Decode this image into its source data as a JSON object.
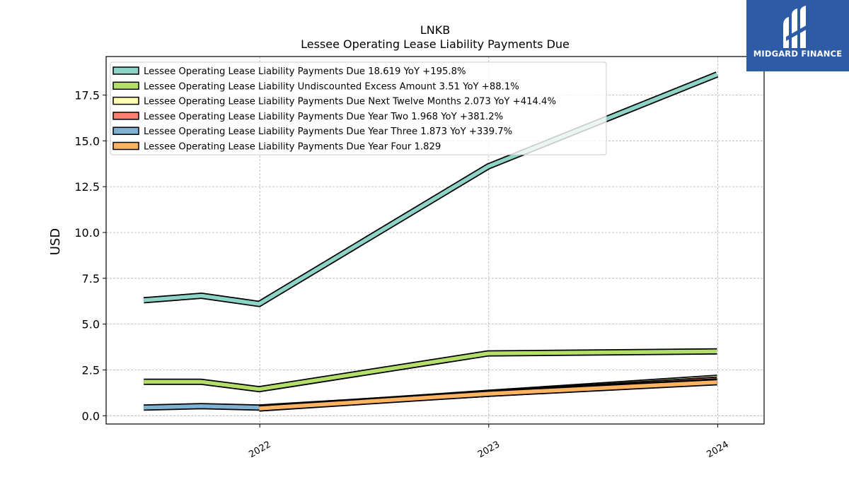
{
  "chart_data": {
    "type": "line",
    "title": "LNKB",
    "subtitle": "Lessee Operating Lease Liability Payments Due",
    "ylabel": "USD",
    "xlabel": "",
    "ylim": [
      -0.45,
      19.6
    ],
    "yticks": [
      0.0,
      2.5,
      5.0,
      7.5,
      10.0,
      12.5,
      15.0,
      17.5
    ],
    "xlim": [
      "2021-05-01",
      "2024-03-15"
    ],
    "xticks": [
      {
        "date": "2022-01-01",
        "label": "2022"
      },
      {
        "date": "2023-01-01",
        "label": "2023"
      },
      {
        "date": "2024-01-01",
        "label": "2024"
      }
    ],
    "grid": true,
    "legend_position": "upper-left",
    "series": [
      {
        "name": "Lessee Operating Lease Liability Payments Due",
        "legend": "Lessee Operating Lease Liability Payments Due  18.619 YoY +195.8%",
        "color": "#8dd3c7",
        "x": [
          "2021-06-30",
          "2021-09-30",
          "2021-12-31",
          "2022-12-31",
          "2023-12-31"
        ],
        "y": [
          6.3,
          6.55,
          6.1,
          13.6,
          18.619
        ]
      },
      {
        "name": "Lessee Operating Lease Liability Undiscounted Excess Amount",
        "legend": "Lessee Operating Lease Liability Undiscounted Excess Amount  3.51 YoY +88.1%",
        "color": "#b3de69",
        "x": [
          "2021-06-30",
          "2021-09-30",
          "2021-12-31",
          "2022-12-31",
          "2023-12-31"
        ],
        "y": [
          1.85,
          1.85,
          1.45,
          3.4,
          3.51
        ]
      },
      {
        "name": "Lessee Operating Lease Liability Payments Due Next Twelve Months",
        "legend": "Lessee Operating Lease Liability Payments Due Next Twelve Months  2.073 YoY +414.4%",
        "color": "#ffffb3",
        "x": [
          "2021-12-31",
          "2022-12-31",
          "2023-12-31"
        ],
        "y": [
          0.4,
          1.25,
          2.073
        ]
      },
      {
        "name": "Lessee Operating Lease Liability Payments Due Year Two",
        "legend": "Lessee Operating Lease Liability Payments Due Year Two  1.968 YoY +381.2%",
        "color": "#fb8072",
        "x": [
          "2021-12-31",
          "2022-12-31",
          "2023-12-31"
        ],
        "y": [
          0.41,
          1.22,
          1.968
        ]
      },
      {
        "name": "Lessee Operating Lease Liability Payments Due Year Three",
        "legend": "Lessee Operating Lease Liability Payments Due Year Three  1.873 YoY +339.7%",
        "color": "#80b1d3",
        "x": [
          "2021-06-30",
          "2021-09-30",
          "2021-12-31",
          "2022-12-31",
          "2023-12-31"
        ],
        "y": [
          0.45,
          0.52,
          0.45,
          1.2,
          1.873
        ]
      },
      {
        "name": "Lessee Operating Lease Liability Payments Due Year Four",
        "legend": "Lessee Operating Lease Liability Payments Due Year Four  1.829",
        "color": "#fdb462",
        "x": [
          "2021-12-31",
          "2022-12-31",
          "2023-12-31"
        ],
        "y": [
          0.4,
          1.2,
          1.829
        ]
      }
    ]
  },
  "logo": {
    "text": "MIDGARD FINANCE",
    "color": "#2d5ba6"
  }
}
